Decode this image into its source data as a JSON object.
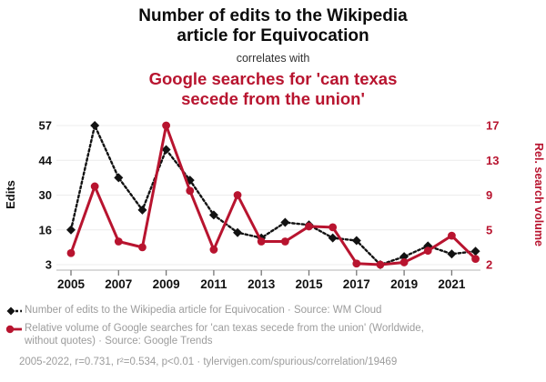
{
  "header": {
    "title": "Number of edits to the Wikipedia\narticle for Equivocation",
    "connector": "correlates with",
    "subtitle": "Google searches for 'can texas\nsecede from the union'"
  },
  "chart_data": {
    "type": "line",
    "x": [
      2005,
      2006,
      2007,
      2008,
      2009,
      2010,
      2011,
      2012,
      2013,
      2014,
      2015,
      2016,
      2017,
      2018,
      2019,
      2020,
      2021,
      2022
    ],
    "x_ticks": [
      2005,
      2007,
      2009,
      2011,
      2013,
      2015,
      2017,
      2019,
      2021
    ],
    "series": [
      {
        "name": "Number of edits to the Wikipedia article for Equivocation",
        "axis": "left",
        "color": "#121212",
        "style": "dotted",
        "marker": "diamond",
        "values": [
          16,
          57,
          37,
          24,
          48,
          36,
          22,
          15,
          13,
          19,
          18,
          13,
          12,
          3,
          6,
          10,
          7,
          8
        ]
      },
      {
        "name": "Relative volume of Google searches for 'can texas secede from the union'",
        "axis": "right",
        "color": "#b8142f",
        "style": "solid",
        "marker": "circle",
        "values": [
          3,
          10,
          4,
          3.5,
          17,
          9.5,
          3.3,
          9,
          4,
          4,
          5.4,
          5.3,
          2.1,
          2,
          2.2,
          3.2,
          4.5,
          2.5
        ]
      }
    ],
    "left_axis": {
      "label": "Edits",
      "ticks": [
        3,
        16,
        30,
        44,
        57
      ]
    },
    "right_axis": {
      "label": "Rel. search volume",
      "ticks": [
        2,
        5,
        9,
        13,
        17
      ]
    },
    "grid": true,
    "legend_position": "bottom"
  },
  "legend": {
    "items": [
      {
        "label": "Number of edits to the Wikipedia article for Equivocation · Source: WM Cloud"
      },
      {
        "label": "Relative volume of Google searches for 'can texas secede from the union' (Worldwide, without quotes) · Source: Google Trends"
      }
    ]
  },
  "footer": {
    "text": "2005-2022, r=0.731, r²=0.534, p<0.01 · tylervigen.com/spurious/correlation/19469"
  },
  "colors": {
    "accent_red": "#b8142f",
    "series_black": "#121212",
    "label_gray": "#9c9c9c",
    "gridline": "#ececec",
    "axis_line": "#c4c4c4"
  }
}
